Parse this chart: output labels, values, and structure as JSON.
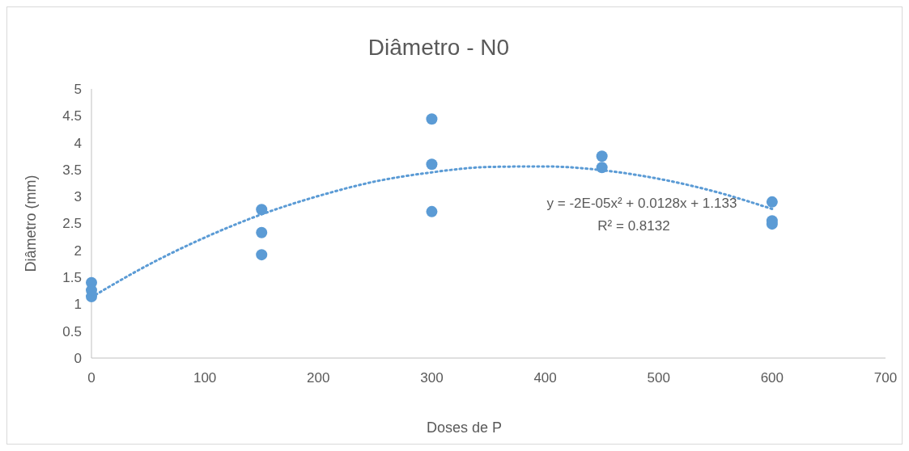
{
  "chart_data": {
    "type": "scatter",
    "title": "Diâmetro - N0",
    "xlabel": "Doses de P",
    "ylabel": "Diâmetro (mm)",
    "xlim": [
      0,
      700
    ],
    "xticks": [
      0,
      100,
      200,
      300,
      400,
      500,
      600,
      700
    ],
    "ylim": [
      0,
      5
    ],
    "yticks": [
      0,
      0.5,
      1,
      1.5,
      2,
      2.5,
      3,
      3.5,
      4,
      4.5,
      5
    ],
    "grid": false,
    "annotations": [
      "y = -2E-05x² + 0.0128x + 1.133",
      "R² = 0.8132"
    ],
    "series": [
      {
        "color": "#5b9bd5",
        "marker": "circle",
        "x": [
          0,
          0,
          0,
          150,
          150,
          150,
          300,
          300,
          300,
          450,
          450,
          600,
          600,
          600
        ],
        "values": [
          1.4,
          1.26,
          1.14,
          2.76,
          2.33,
          1.92,
          4.44,
          3.6,
          2.72,
          3.75,
          3.54,
          2.9,
          2.55,
          2.49
        ]
      },
      {
        "type": "line",
        "color": "#5b9bd5",
        "line_style": "dotted",
        "marker": "none",
        "x": [
          0,
          50,
          100,
          150,
          200,
          250,
          300,
          350,
          400,
          450,
          500,
          550,
          600
        ],
        "values": [
          1.13,
          1.73,
          2.24,
          2.67,
          3.01,
          3.28,
          3.45,
          3.55,
          3.56,
          3.49,
          3.33,
          3.09,
          2.77
        ]
      }
    ]
  }
}
